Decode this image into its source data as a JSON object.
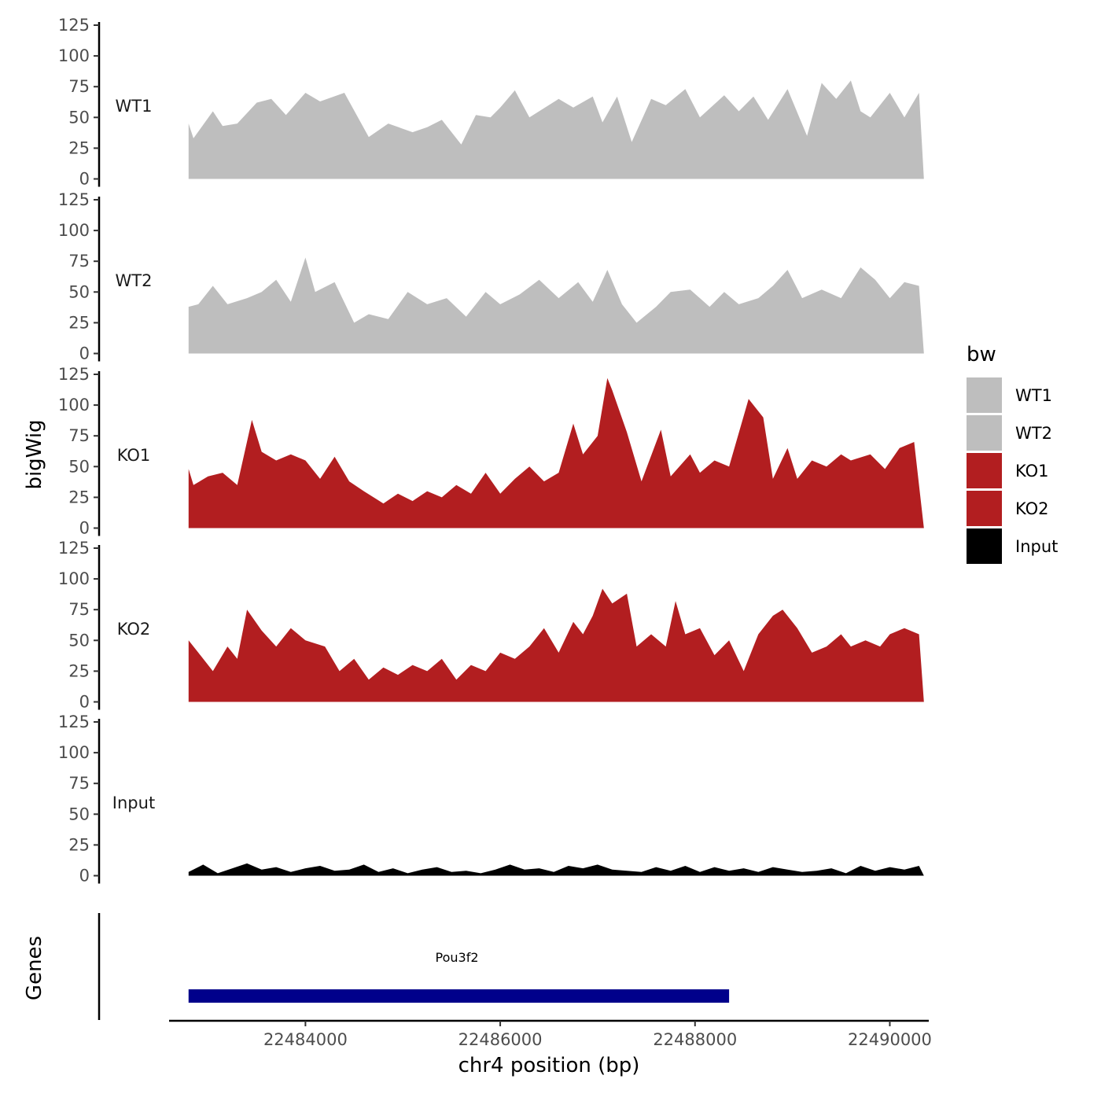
{
  "chart_data": {
    "type": "area",
    "xlabel": "chr4 position (bp)",
    "ylabel": "bigWig",
    "genes_label": "Genes",
    "xlim": [
      22482600,
      22490400
    ],
    "x_ticks": [
      22484000,
      22486000,
      22488000,
      22490000
    ],
    "x_tick_labels": [
      "22484000",
      "22486000",
      "22488000",
      "22490000"
    ],
    "ylim": [
      0,
      125
    ],
    "y_ticks": [
      0,
      25,
      50,
      75,
      100,
      125
    ],
    "y_tick_labels": [
      "0",
      "25",
      "50",
      "75",
      "100",
      "125"
    ],
    "legend": {
      "title": "bw",
      "position": "right",
      "entries": [
        {
          "label": "WT1",
          "color": "#bebebe"
        },
        {
          "label": "WT2",
          "color": "#bebebe"
        },
        {
          "label": "KO1",
          "color": "#b21e20"
        },
        {
          "label": "KO2",
          "color": "#b21e20"
        },
        {
          "label": "Input",
          "color": "#000000"
        }
      ]
    },
    "series": [
      {
        "name": "WT1",
        "color": "#bebebe",
        "x": [
          22482800,
          22482850,
          22483050,
          22483150,
          22483300,
          22483500,
          22483650,
          22483800,
          22484000,
          22484150,
          22484400,
          22484650,
          22484850,
          22485100,
          22485250,
          22485400,
          22485600,
          22485750,
          22485900,
          22486000,
          22486150,
          22486300,
          22486600,
          22486750,
          22486950,
          22487050,
          22487200,
          22487350,
          22487550,
          22487700,
          22487900,
          22488050,
          22488300,
          22488450,
          22488600,
          22488750,
          22488950,
          22489150,
          22489300,
          22489450,
          22489600,
          22489700,
          22489800,
          22490000,
          22490150,
          22490300,
          22490350
        ],
        "values": [
          45,
          33,
          55,
          43,
          45,
          62,
          65,
          52,
          70,
          63,
          70,
          34,
          45,
          38,
          42,
          48,
          28,
          52,
          50,
          58,
          72,
          50,
          65,
          58,
          67,
          46,
          67,
          30,
          65,
          60,
          73,
          50,
          68,
          55,
          67,
          48,
          73,
          35,
          78,
          65,
          80,
          55,
          50,
          70,
          50,
          70,
          0
        ]
      },
      {
        "name": "WT2",
        "color": "#bebebe",
        "x": [
          22482800,
          22482900,
          22483050,
          22483200,
          22483400,
          22483550,
          22483700,
          22483850,
          22484000,
          22484100,
          22484300,
          22484500,
          22484650,
          22484850,
          22485050,
          22485250,
          22485450,
          22485650,
          22485850,
          22486000,
          22486200,
          22486400,
          22486600,
          22486800,
          22486950,
          22487100,
          22487250,
          22487400,
          22487600,
          22487750,
          22487950,
          22488150,
          22488300,
          22488450,
          22488650,
          22488800,
          22488950,
          22489100,
          22489300,
          22489500,
          22489700,
          22489850,
          22490000,
          22490150,
          22490300,
          22490350
        ],
        "values": [
          38,
          40,
          55,
          40,
          45,
          50,
          60,
          42,
          78,
          50,
          58,
          25,
          32,
          28,
          50,
          40,
          45,
          30,
          50,
          40,
          48,
          60,
          45,
          58,
          42,
          68,
          40,
          25,
          38,
          50,
          52,
          38,
          50,
          40,
          45,
          55,
          68,
          45,
          52,
          45,
          70,
          60,
          45,
          58,
          55,
          0
        ]
      },
      {
        "name": "KO1",
        "color": "#b21e20",
        "x": [
          22482800,
          22482850,
          22483000,
          22483150,
          22483300,
          22483450,
          22483550,
          22483700,
          22483850,
          22484000,
          22484150,
          22484300,
          22484450,
          22484600,
          22484800,
          22484950,
          22485100,
          22485250,
          22485400,
          22485550,
          22485700,
          22485850,
          22486000,
          22486150,
          22486300,
          22486450,
          22486600,
          22486750,
          22486850,
          22487000,
          22487100,
          22487150,
          22487300,
          22487450,
          22487650,
          22487750,
          22487950,
          22488050,
          22488200,
          22488350,
          22488550,
          22488700,
          22488800,
          22488950,
          22489050,
          22489200,
          22489350,
          22489500,
          22489600,
          22489800,
          22489950,
          22490100,
          22490250,
          22490350
        ],
        "values": [
          48,
          35,
          42,
          45,
          35,
          88,
          62,
          55,
          60,
          55,
          40,
          58,
          38,
          30,
          20,
          28,
          22,
          30,
          25,
          35,
          28,
          45,
          28,
          40,
          50,
          38,
          45,
          85,
          60,
          75,
          122,
          112,
          78,
          38,
          80,
          42,
          60,
          45,
          55,
          50,
          105,
          90,
          40,
          65,
          40,
          55,
          50,
          60,
          55,
          60,
          48,
          65,
          70,
          0
        ]
      },
      {
        "name": "KO2",
        "color": "#b21e20",
        "x": [
          22482800,
          22482900,
          22483050,
          22483200,
          22483300,
          22483400,
          22483550,
          22483700,
          22483850,
          22484000,
          22484200,
          22484350,
          22484500,
          22484650,
          22484800,
          22484950,
          22485100,
          22485250,
          22485400,
          22485550,
          22485700,
          22485850,
          22486000,
          22486150,
          22486300,
          22486450,
          22486600,
          22486750,
          22486850,
          22486950,
          22487050,
          22487150,
          22487300,
          22487400,
          22487550,
          22487700,
          22487800,
          22487900,
          22488050,
          22488200,
          22488350,
          22488500,
          22488650,
          22488800,
          22488900,
          22489050,
          22489200,
          22489350,
          22489500,
          22489600,
          22489750,
          22489900,
          22490000,
          22490150,
          22490300,
          22490350
        ],
        "values": [
          50,
          40,
          25,
          45,
          35,
          75,
          58,
          45,
          60,
          50,
          45,
          25,
          35,
          18,
          28,
          22,
          30,
          25,
          35,
          18,
          30,
          25,
          40,
          35,
          45,
          60,
          40,
          65,
          55,
          70,
          92,
          80,
          88,
          45,
          55,
          45,
          82,
          55,
          60,
          38,
          50,
          25,
          55,
          70,
          75,
          60,
          40,
          45,
          55,
          45,
          50,
          45,
          55,
          60,
          55,
          0
        ]
      },
      {
        "name": "Input",
        "color": "#000000",
        "x": [
          22482800,
          22482950,
          22483100,
          22483250,
          22483400,
          22483550,
          22483700,
          22483850,
          22484000,
          22484150,
          22484300,
          22484450,
          22484600,
          22484750,
          22484900,
          22485050,
          22485200,
          22485350,
          22485500,
          22485650,
          22485800,
          22485950,
          22486100,
          22486250,
          22486400,
          22486550,
          22486700,
          22486850,
          22487000,
          22487150,
          22487300,
          22487450,
          22487600,
          22487750,
          22487900,
          22488050,
          22488200,
          22488350,
          22488500,
          22488650,
          22488800,
          22488950,
          22489100,
          22489250,
          22489400,
          22489550,
          22489700,
          22489850,
          22490000,
          22490150,
          22490300,
          22490350
        ],
        "values": [
          3,
          9,
          2,
          6,
          10,
          5,
          7,
          3,
          6,
          8,
          4,
          5,
          9,
          3,
          6,
          2,
          5,
          7,
          3,
          4,
          2,
          5,
          9,
          5,
          6,
          3,
          8,
          6,
          9,
          5,
          4,
          3,
          7,
          4,
          8,
          3,
          7,
          4,
          6,
          3,
          7,
          5,
          3,
          4,
          6,
          2,
          8,
          4,
          7,
          5,
          8,
          0
        ]
      }
    ],
    "genes": [
      {
        "name": "Pou3f2",
        "start": 22482800,
        "end": 22488350,
        "color": "#00008b"
      }
    ]
  }
}
